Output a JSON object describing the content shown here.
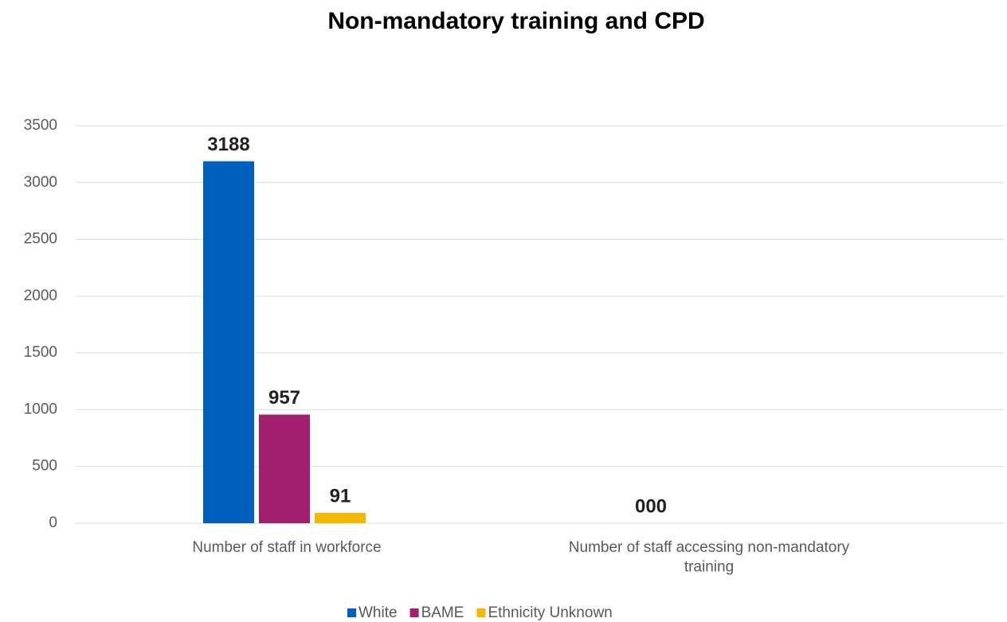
{
  "chart_data": {
    "type": "bar",
    "title": "Non-mandatory training and CPD",
    "categories": [
      "Number of staff in workforce",
      "Number of staff accessing non-mandatory training"
    ],
    "series": [
      {
        "name": "White",
        "color": "#0060bd",
        "values": [
          3188,
          0
        ],
        "value_labels": [
          "3188",
          "000"
        ]
      },
      {
        "name": "BAME",
        "color": "#a0206e",
        "values": [
          957,
          0
        ],
        "value_labels": [
          "957",
          null
        ]
      },
      {
        "name": "Ethnicity Unknown",
        "color": "#f5b800",
        "values": [
          91,
          0
        ],
        "value_labels": [
          "91",
          null
        ]
      }
    ],
    "ylim": [
      0,
      3500
    ],
    "yticks": [
      0,
      500,
      1000,
      1500,
      2000,
      2500,
      3000,
      3500
    ],
    "grid": true,
    "legend": "bottom"
  }
}
